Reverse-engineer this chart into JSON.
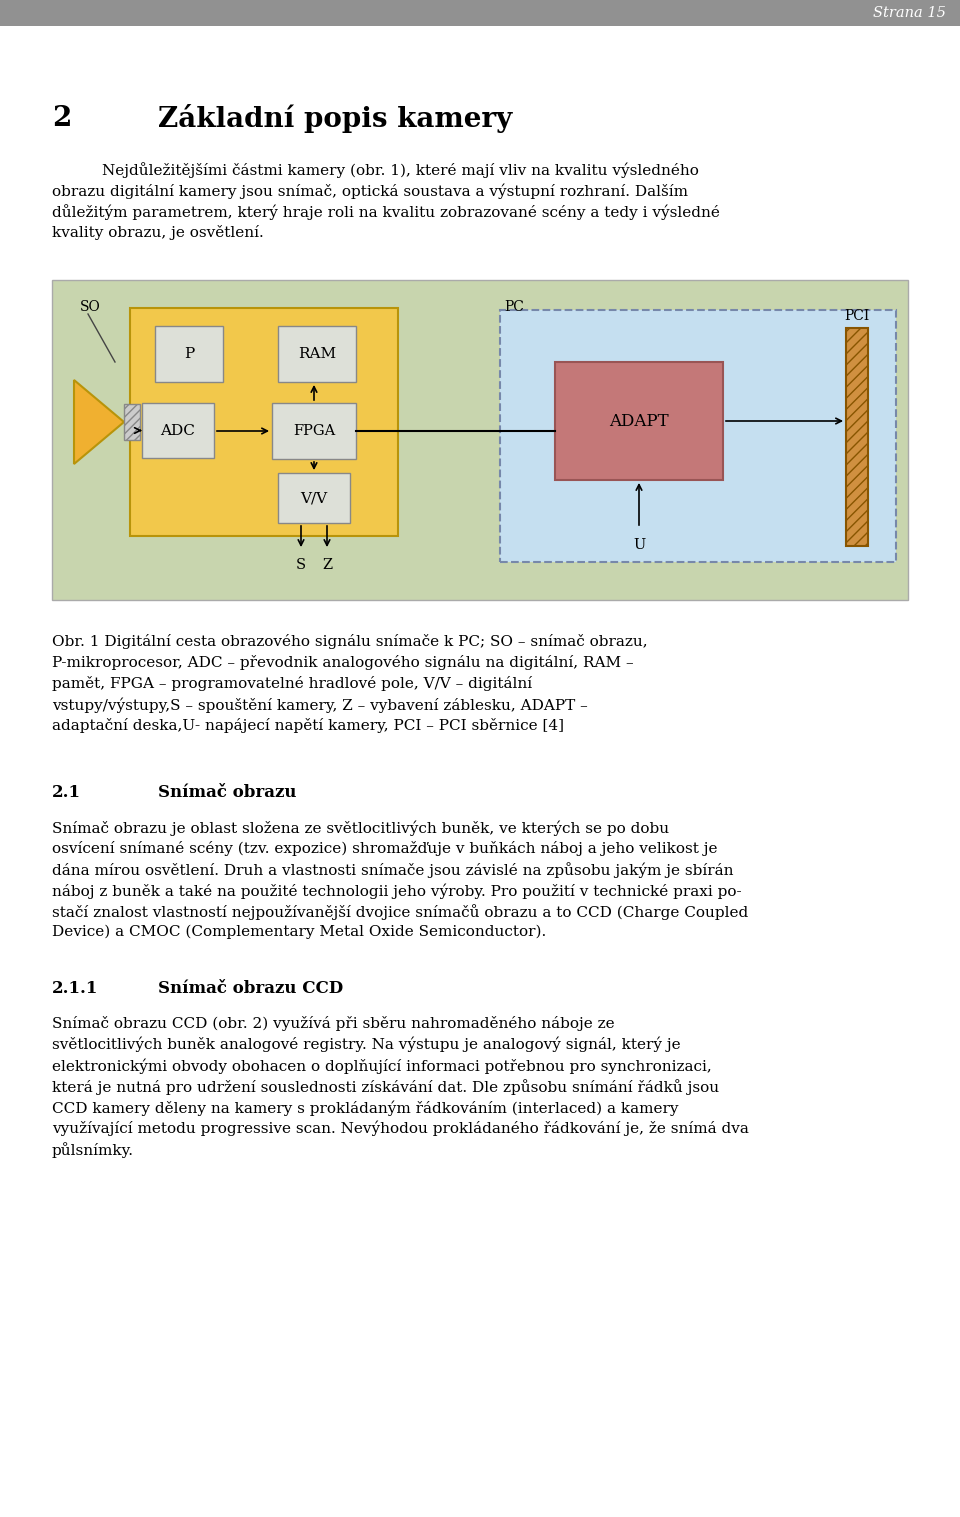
{
  "page_bg": "#ffffff",
  "header_bg": "#919191",
  "header_text": "Strana 15",
  "header_text_color": "#ffffff",
  "chapter_num": "2",
  "chapter_title": "Základní popis kamery",
  "diagram_bg": "#c8d5ae",
  "sensor_box_bg": "#f2c84b",
  "pc_dashed_bg": "#c5dff0",
  "adapt_box_bg": "#c47878",
  "component_box_bg": "#dde0d8",
  "component_box_border": "#888888",
  "sec21_num": "2.1",
  "sec21_title": "Snímač obrazu",
  "sec211_num": "2.1.1",
  "sec211_title": "Snímač obrazu CCD"
}
